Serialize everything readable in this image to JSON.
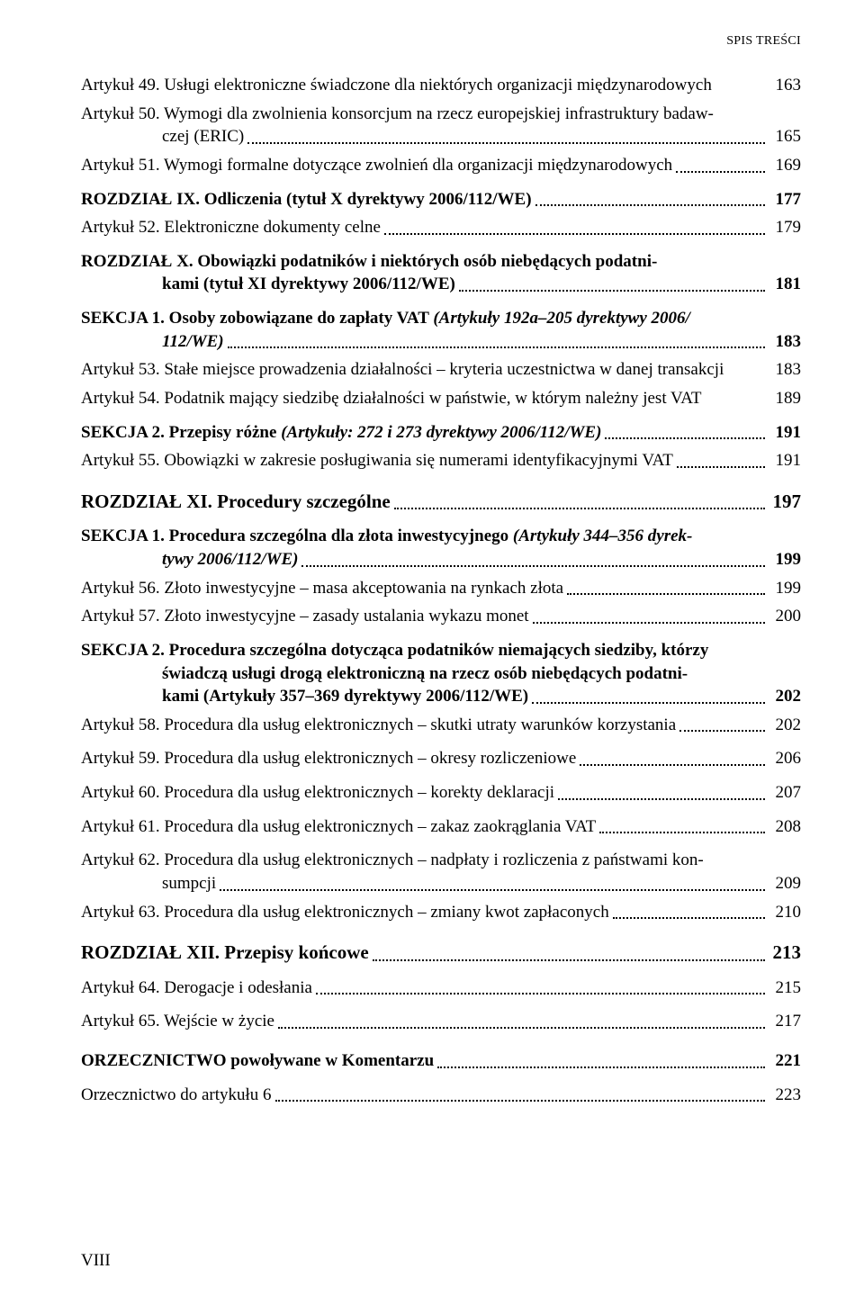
{
  "header": "SPIS TREŚCI",
  "footer": "VIII",
  "lines": [
    {
      "type": "plain-last",
      "text": "Artykuł 49. Usługi elektroniczne świadczone dla niektórych organizacji międzynarodowych",
      "page": "163"
    },
    {
      "type": "multi",
      "first": "Artykuł 50. Wymogi dla zwolnienia konsorcjum na rzecz europejskiej infrastruktury badaw-",
      "cont_label": "czej (ERIC)",
      "cont_indent": 90,
      "page": "165"
    },
    {
      "type": "single",
      "label": "Artykuł 51. Wymogi formalne dotyczące zwolnień dla organizacji międzynarodowych",
      "page": "169"
    },
    {
      "type": "spacer",
      "size": "sm"
    },
    {
      "type": "single",
      "bold": true,
      "label": "ROZDZIAŁ IX. Odliczenia (tytuł X dyrektywy 2006/112/WE)",
      "page": "177"
    },
    {
      "type": "single",
      "label": "Artykuł 52. Elektroniczne dokumenty celne",
      "page": "179"
    },
    {
      "type": "spacer",
      "size": "sm"
    },
    {
      "type": "multi",
      "bold": true,
      "first": "ROZDZIAŁ X. Obowiązki podatników i niektórych osób niebędących podatni-",
      "cont_label": "kami (tytuł XI dyrektywy 2006/112/WE)",
      "cont_indent": 90,
      "page": "181"
    },
    {
      "type": "spacer",
      "size": "sm"
    },
    {
      "type": "multi-mixed",
      "prefix": "SEKCJA 1. Osoby zobowiązane do zapłaty VAT ",
      "italic_part": "(Artykuły 192a–205 dyrektywy 2006/",
      "cont_italic": "112/WE)",
      "cont_indent": 90,
      "page": "183"
    },
    {
      "type": "plain-last",
      "text": "Artykuł 53. Stałe miejsce prowadzenia działalności – kryteria uczestnictwa w danej transakcji",
      "page": "183"
    },
    {
      "type": "plain-last",
      "text": "Artykuł 54. Podatnik mający siedzibę działalności w państwie, w którym należny jest VAT",
      "page": "189"
    },
    {
      "type": "spacer",
      "size": "sm"
    },
    {
      "type": "mixed-single",
      "prefix": "SEKCJA 2. Przepisy różne ",
      "italic_part": "(Artykuły: 272 i 273 dyrektywy 2006/112/WE)",
      "page": "191"
    },
    {
      "type": "single",
      "label": "Artykuł 55. Obowiązki w zakresie posługiwania się numerami identyfikacyjnymi VAT",
      "page": "191"
    },
    {
      "type": "spacer",
      "size": "md"
    },
    {
      "type": "single",
      "bold": true,
      "label": "ROZDZIAŁ XI. Procedury szczególne",
      "page": "197",
      "large": true
    },
    {
      "type": "spacer",
      "size": "sm"
    },
    {
      "type": "multi-mixed",
      "prefix": "SEKCJA 1. Procedura szczególna dla złota inwestycyjnego ",
      "italic_part": "(Artykuły 344–356 dyrek-",
      "cont_italic": "tywy 2006/112/WE)",
      "cont_indent": 90,
      "page": "199"
    },
    {
      "type": "single",
      "label": "Artykuł 56. Złoto inwestycyjne – masa akceptowania na rynkach złota",
      "page": "199"
    },
    {
      "type": "single",
      "label": "Artykuł 57. Złoto inwestycyjne – zasady ustalania wykazu monet",
      "page": "200"
    },
    {
      "type": "spacer",
      "size": "sm"
    },
    {
      "type": "multi3",
      "bold": true,
      "l1": "SEKCJA 2. Procedura szczególna dotycząca podatników niemających siedziby, którzy",
      "l2": "świadczą usługi drogą elektroniczną na rzecz osób niebędących podatni-",
      "l3_label": "kami (Artykuły 357–369 dyrektywy 2006/112/WE)",
      "cont_indent": 90,
      "page": "202"
    },
    {
      "type": "single",
      "label": "Artykuł 58. Procedura dla usług elektronicznych – skutki utraty warunków korzystania",
      "page": "202"
    },
    {
      "type": "spacer",
      "size": "sm"
    },
    {
      "type": "single",
      "label": "Artykuł 59. Procedura dla usług elektronicznych – okresy rozliczeniowe",
      "page": "206"
    },
    {
      "type": "spacer",
      "size": "sm"
    },
    {
      "type": "single",
      "label": "Artykuł 60. Procedura dla usług elektronicznych – korekty deklaracji",
      "page": "207"
    },
    {
      "type": "spacer",
      "size": "sm"
    },
    {
      "type": "single",
      "label": "Artykuł 61. Procedura dla usług elektronicznych – zakaz zaokrąglania VAT",
      "page": "208"
    },
    {
      "type": "spacer",
      "size": "sm"
    },
    {
      "type": "multi",
      "first": "Artykuł 62. Procedura dla usług elektronicznych – nadpłaty i rozliczenia z państwami kon-",
      "cont_label": "sumpcji",
      "cont_indent": 90,
      "page": "209"
    },
    {
      "type": "single",
      "label": "Artykuł 63. Procedura dla usług elektronicznych – zmiany kwot zapłaconych",
      "page": "210"
    },
    {
      "type": "spacer",
      "size": "md"
    },
    {
      "type": "single",
      "bold": true,
      "label": "ROZDZIAŁ XII. Przepisy końcowe",
      "page": "213",
      "large": true
    },
    {
      "type": "spacer",
      "size": "sm"
    },
    {
      "type": "single",
      "label": "Artykuł 64. Derogacje i odesłania",
      "page": "215"
    },
    {
      "type": "spacer",
      "size": "sm"
    },
    {
      "type": "single",
      "label": "Artykuł 65. Wejście w życie",
      "page": "217"
    },
    {
      "type": "spacer",
      "size": "md"
    },
    {
      "type": "single",
      "bold": true,
      "label": "ORZECZNICTWO powoływane w Komentarzu",
      "page": "221"
    },
    {
      "type": "spacer",
      "size": "sm"
    },
    {
      "type": "single",
      "label": "Orzecznictwo do artykułu 6",
      "page": "223"
    }
  ]
}
